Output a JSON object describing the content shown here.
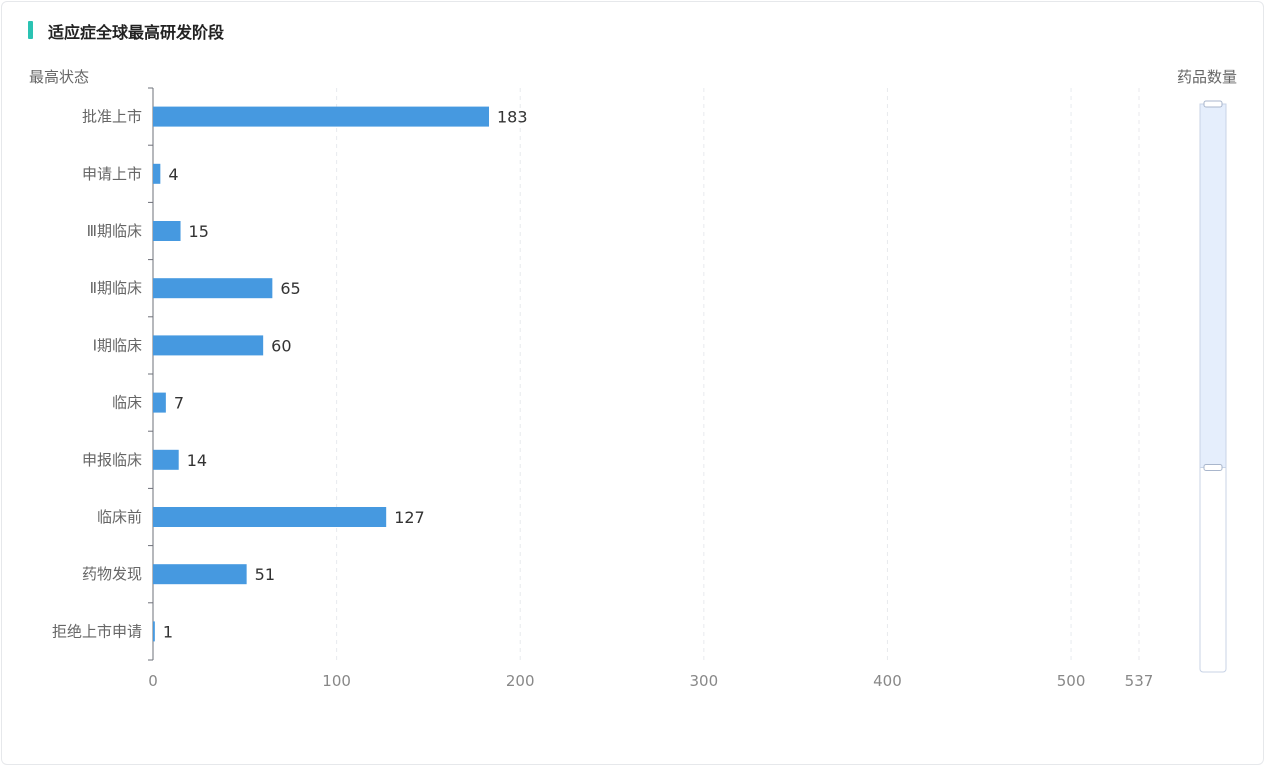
{
  "chart_data": {
    "type": "bar",
    "orientation": "horizontal",
    "title": "适应症全球最高研发阶段",
    "ylabel": "最高状态",
    "xlabel": "药品数量",
    "categories": [
      "批准上市",
      "申请上市",
      "Ⅲ期临床",
      "Ⅱ期临床",
      "Ⅰ期临床",
      "临床",
      "申报临床",
      "临床前",
      "药物发现",
      "拒绝上市申请"
    ],
    "values": [
      183,
      4,
      15,
      65,
      60,
      7,
      14,
      127,
      51,
      1
    ],
    "x_ticks": [
      0,
      100,
      200,
      300,
      400,
      500,
      537
    ],
    "xlim": [
      0,
      537
    ],
    "grid": "vertical-dashed",
    "bar_color": "#4699e0",
    "scrollbar": {
      "visible_fraction_start": 0,
      "visible_fraction_end": 0.64
    }
  },
  "colors": {
    "accent": "#2bc3b3",
    "bar": "#4699e0",
    "grid": "#e8eaee",
    "scroll_fill": "#e5eefc",
    "scroll_border": "#c8d3e6"
  }
}
